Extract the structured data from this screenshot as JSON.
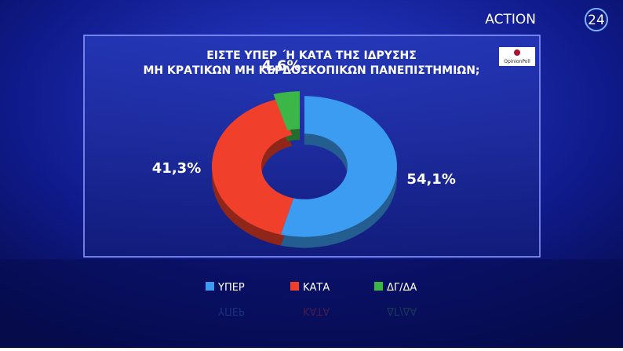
{
  "brand": {
    "name": "ACTION",
    "number": "24"
  },
  "source": "OpinionPoll",
  "chart_data": {
    "type": "donut",
    "title": [
      "ΕΙΣΤΕ ΥΠΕΡ ΄Η ΚΑΤΑ ΤΗΣ ΙΔΡΥΣΗΣ",
      "ΜΗ ΚΡΑΤΙΚΩΝ ΜΗ ΚΕΡΔΟΣΚΟΠΙΚΩΝ ΠΑΝΕΠΙΣΤΗΜΙΩΝ;"
    ],
    "categories": [
      "ΥΠΕΡ",
      "ΚΑΤΑ",
      "ΔΓ/ΔΑ"
    ],
    "values": [
      54.1,
      41.3,
      4.6
    ],
    "value_labels": [
      "54,1%",
      "41,3%",
      "4,6%"
    ],
    "colors": [
      "#3c9cf2",
      "#f0402c",
      "#3db648"
    ]
  }
}
